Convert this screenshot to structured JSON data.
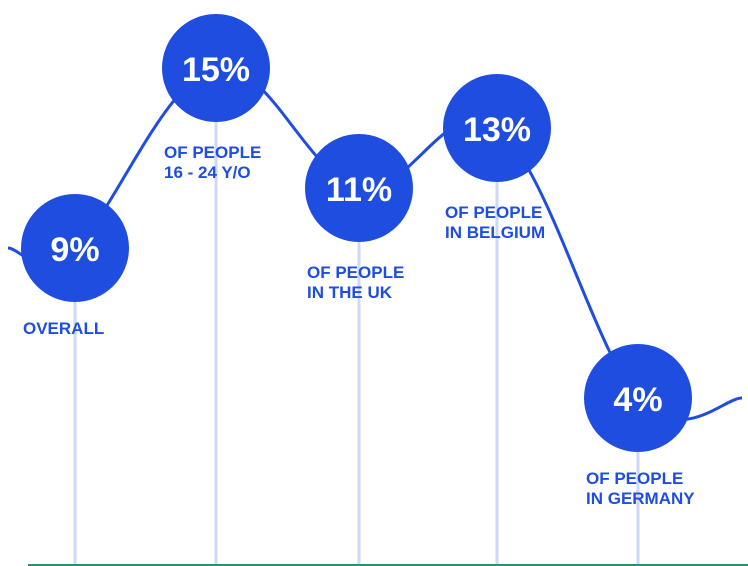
{
  "chart_data": {
    "type": "line",
    "categories": [
      "OVERALL",
      "OF PEOPLE 16 - 24 Y/O",
      "OF PEOPLE IN THE UK",
      "OF PEOPLE IN BELGIUM",
      "OF PEOPLE IN GERMANY"
    ],
    "values": [
      9,
      15,
      11,
      13,
      4
    ],
    "value_labels": [
      "9%",
      "15%",
      "11%",
      "13%",
      "4%"
    ],
    "captions": [
      [
        "OVERALL"
      ],
      [
        "OF PEOPLE",
        "16 - 24 Y/O"
      ],
      [
        "OF PEOPLE",
        "IN THE UK"
      ],
      [
        "OF PEOPLE",
        "IN BELGIUM"
      ],
      [
        "OF PEOPLE",
        "IN GERMANY"
      ]
    ],
    "unit": "%",
    "grid": "vertical drop lines",
    "legend": "none",
    "colors": {
      "bubble": "#1f4de0",
      "line": "#1f4de0",
      "caption": "#1f4de0",
      "dropline": "#cdd9f6",
      "baseline": "#2f8f6a",
      "bubble_text": "#ffffff"
    }
  }
}
